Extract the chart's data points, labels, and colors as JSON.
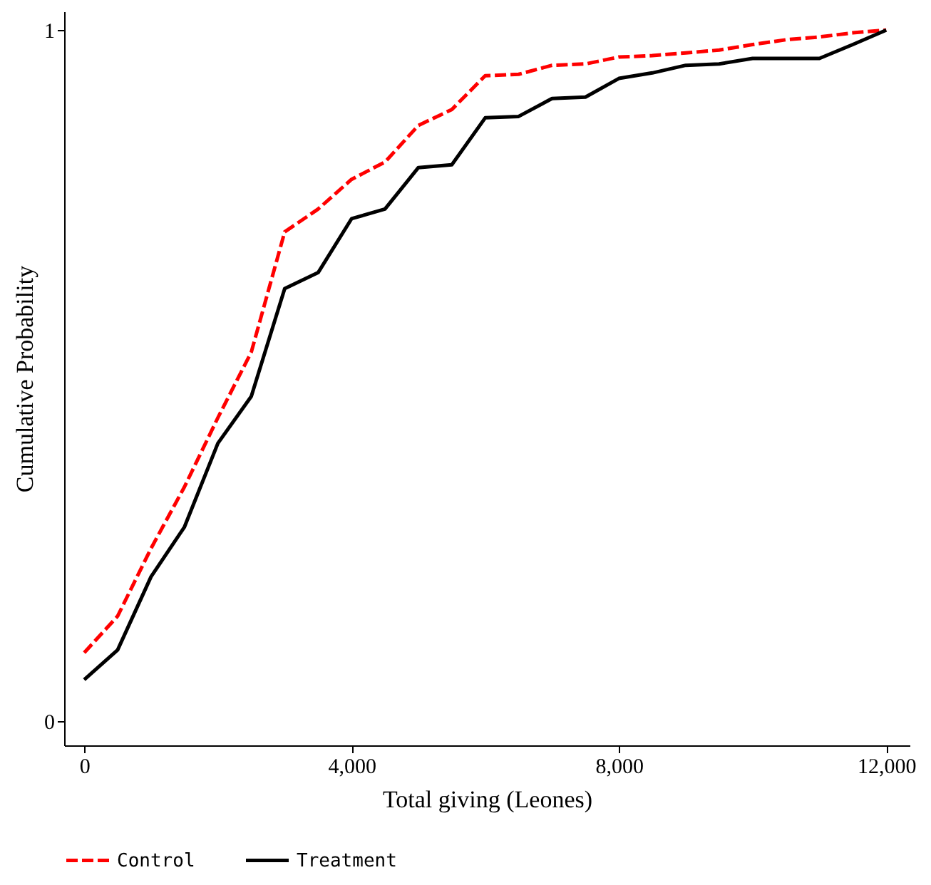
{
  "chart_data": {
    "type": "line",
    "xlabel": "Total giving (Leones)",
    "ylabel": "Cumulative Probability",
    "x": [
      0,
      500,
      1000,
      1500,
      2000,
      2500,
      3000,
      3500,
      4000,
      4500,
      5000,
      5500,
      6000,
      6500,
      7000,
      7500,
      8000,
      8500,
      9000,
      9500,
      10000,
      10500,
      11000,
      11500,
      12000
    ],
    "series": [
      {
        "name": "Control",
        "color": "#ff0000",
        "line_style": "dashed",
        "values": [
          0.099,
          0.152,
          0.25,
          0.339,
          0.439,
          0.534,
          0.708,
          0.741,
          0.784,
          0.809,
          0.862,
          0.885,
          0.934,
          0.936,
          0.949,
          0.951,
          0.961,
          0.963,
          0.967,
          0.971,
          0.979,
          0.986,
          0.99,
          0.996,
          1
        ]
      },
      {
        "name": "Treatment",
        "color": "#000000",
        "line_style": "solid",
        "values": [
          0.06,
          0.103,
          0.209,
          0.281,
          0.402,
          0.47,
          0.626,
          0.649,
          0.727,
          0.741,
          0.801,
          0.805,
          0.873,
          0.875,
          0.901,
          0.903,
          0.93,
          0.938,
          0.949,
          0.951,
          0.959,
          0.959,
          0.959,
          0.979,
          1
        ]
      }
    ],
    "xlim": [
      -300,
      12350
    ],
    "ylim": [
      -0.035,
      1.027
    ],
    "xticks": [
      0,
      {
        "value": 4000,
        "label": "4,000"
      },
      {
        "value": 8000,
        "label": "8,000"
      },
      {
        "value": 12000,
        "label": "12,000"
      }
    ],
    "yticks": [
      0,
      1
    ],
    "grid": false,
    "legend": "bottom",
    "marker": "none"
  }
}
